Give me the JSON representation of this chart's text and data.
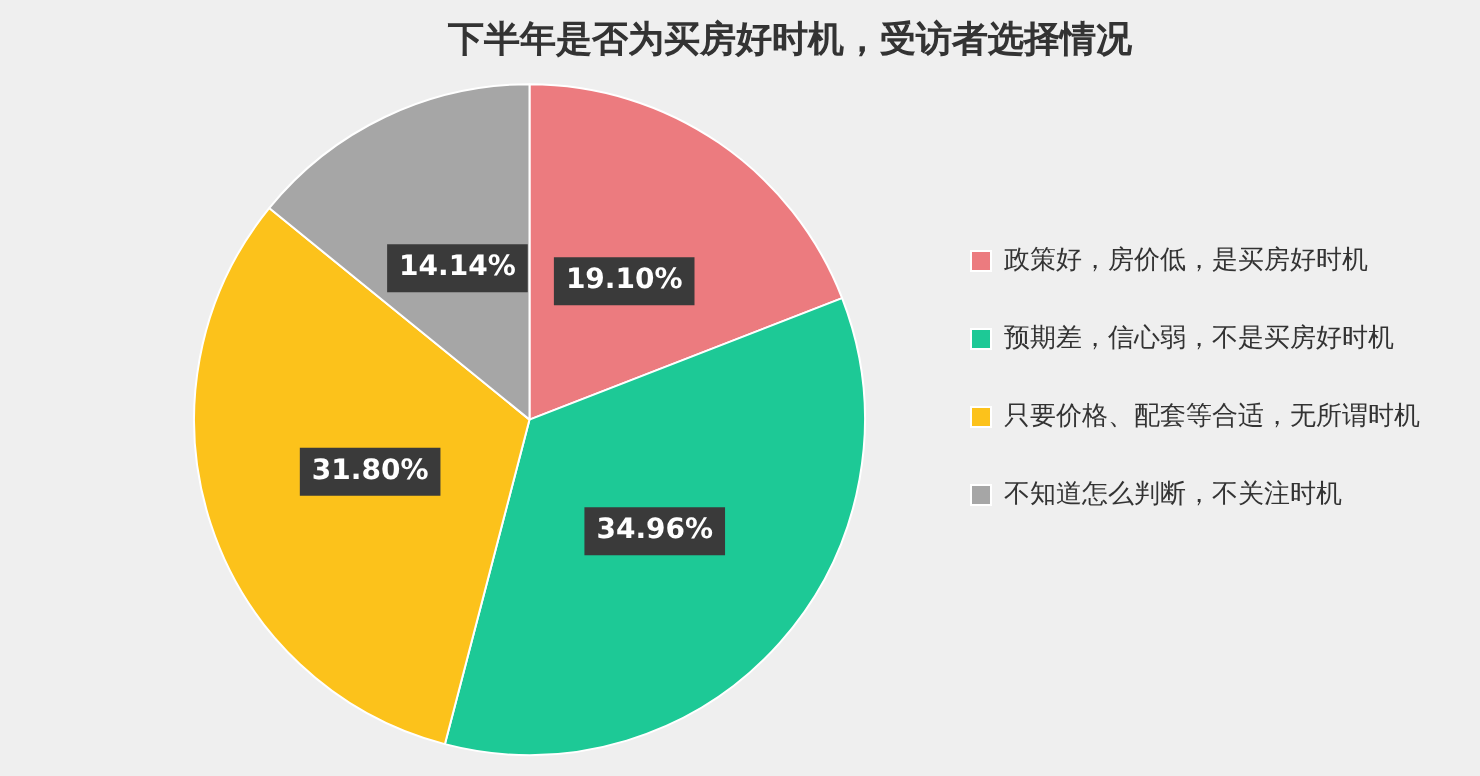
{
  "chart_data": {
    "type": "pie",
    "title": "下半年是否为买房好时机，受访者选择情况",
    "categories": [
      "政策好，房价低，是买房好时机",
      "预期差，信心弱，不是买房好时机",
      "只要价格、配套等合适，无所谓时机",
      "不知道怎么判断，不关注时机"
    ],
    "values": [
      19.1,
      34.96,
      31.8,
      14.14
    ],
    "colors": [
      "#ec7b7f",
      "#1dc996",
      "#fcc21b",
      "#a6a6a6"
    ],
    "value_labels": [
      "19.10%",
      "34.96%",
      "31.80%",
      "14.14%"
    ],
    "legend": "right"
  }
}
